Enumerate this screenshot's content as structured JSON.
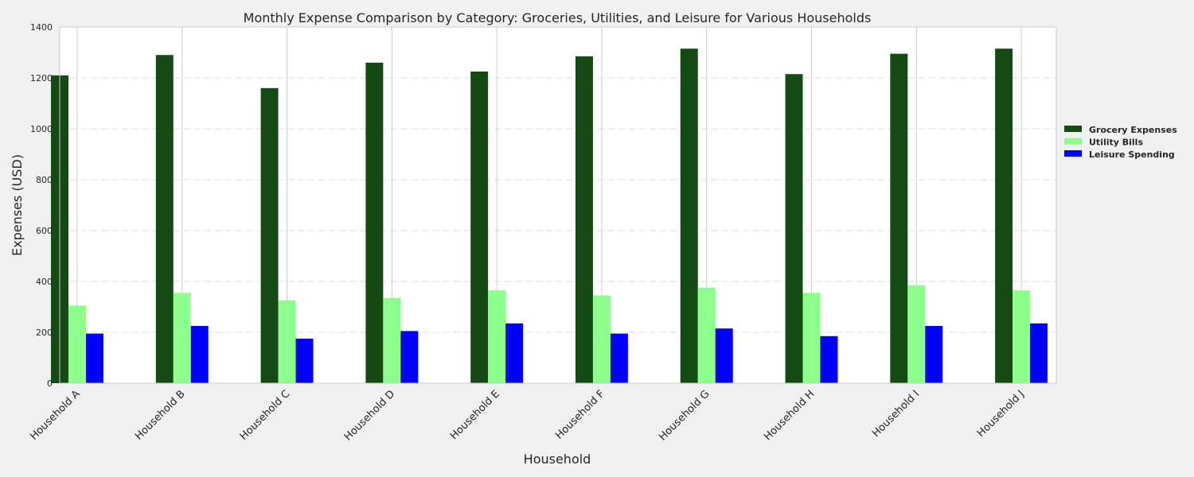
{
  "chart_data": {
    "type": "bar",
    "title": "Monthly Expense Comparison by Category: Groceries, Utilities, and Leisure for Various Households",
    "xlabel": "Household",
    "ylabel": "Expenses (USD)",
    "ylim": [
      0,
      1400
    ],
    "yticks": [
      0,
      200,
      400,
      600,
      800,
      1000,
      1200,
      1400
    ],
    "grid": true,
    "legend_position": "right",
    "categories": [
      "Household A",
      "Household B",
      "Household C",
      "Household D",
      "Household E",
      "Household F",
      "Household G",
      "Household H",
      "Household I",
      "Household J"
    ],
    "series": [
      {
        "name": "Grocery Expenses",
        "color": "#144a14",
        "values": [
          1210,
          1290,
          1160,
          1260,
          1225,
          1285,
          1315,
          1215,
          1295,
          1315
        ]
      },
      {
        "name": "Utility Bills",
        "color": "#8cff8c",
        "values": [
          305,
          355,
          325,
          335,
          365,
          345,
          375,
          355,
          385,
          365
        ]
      },
      {
        "name": "Leisure Spending",
        "color": "#0000ff",
        "values": [
          195,
          225,
          175,
          205,
          235,
          195,
          215,
          185,
          225,
          235
        ]
      }
    ]
  }
}
